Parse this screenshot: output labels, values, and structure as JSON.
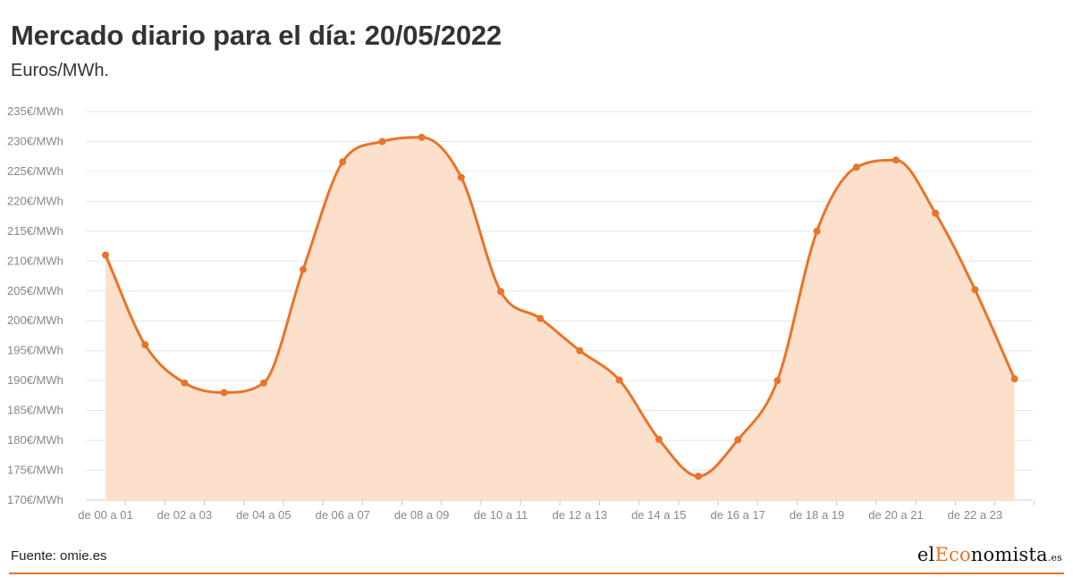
{
  "header": {
    "title": "Mercado diario para el día: 20/05/2022",
    "subtitle": "Euros/MWh."
  },
  "footer": {
    "source": "Fuente: omie.es",
    "brand": {
      "prefix": "el",
      "accent": "Eco",
      "middle": "nomista",
      "tld": ".es"
    }
  },
  "colors": {
    "line": "#e8742a",
    "area": "#fde0cc",
    "grid": "#e6e6e6",
    "accent": "#e8742a"
  },
  "chart_data": {
    "type": "area",
    "title": "Mercado diario para el día: 20/05/2022",
    "subtitle": "Euros/MWh.",
    "xlabel": "",
    "ylabel": "",
    "y_unit_suffix": "€/MWh",
    "ylim": [
      170,
      235
    ],
    "yticks": [
      170,
      175,
      180,
      185,
      190,
      195,
      200,
      205,
      210,
      215,
      220,
      225,
      230,
      235
    ],
    "grid": true,
    "x_tick_labels": [
      "de 00 a 01",
      "de 02 a 03",
      "de 04 a 05",
      "de 06 a 07",
      "de 08 a 09",
      "de 10 a 11",
      "de 12 a 13",
      "de 14 a 15",
      "de 16 a 17",
      "de 18 a 19",
      "de 20 a 21",
      "de 22 a 23"
    ],
    "x": [
      "de 00 a 01",
      "de 01 a 02",
      "de 02 a 03",
      "de 03 a 04",
      "de 04 a 05",
      "de 05 a 06",
      "de 06 a 07",
      "de 07 a 08",
      "de 08 a 09",
      "de 09 a 10",
      "de 10 a 11",
      "de 11 a 12",
      "de 12 a 13",
      "de 13 a 14",
      "de 14 a 15",
      "de 15 a 16",
      "de 16 a 17",
      "de 17 a 18",
      "de 18 a 19",
      "de 19 a 20",
      "de 20 a 21",
      "de 21 a 22",
      "de 22 a 23",
      "de 23 a 24"
    ],
    "values": [
      211.0,
      196.0,
      189.6,
      188.0,
      189.6,
      208.6,
      226.6,
      230.0,
      230.7,
      224.0,
      204.9,
      200.4,
      195.0,
      190.1,
      180.2,
      174.0,
      180.1,
      190.0,
      215.0,
      225.7,
      226.9,
      218.0,
      205.2,
      190.3
    ]
  }
}
